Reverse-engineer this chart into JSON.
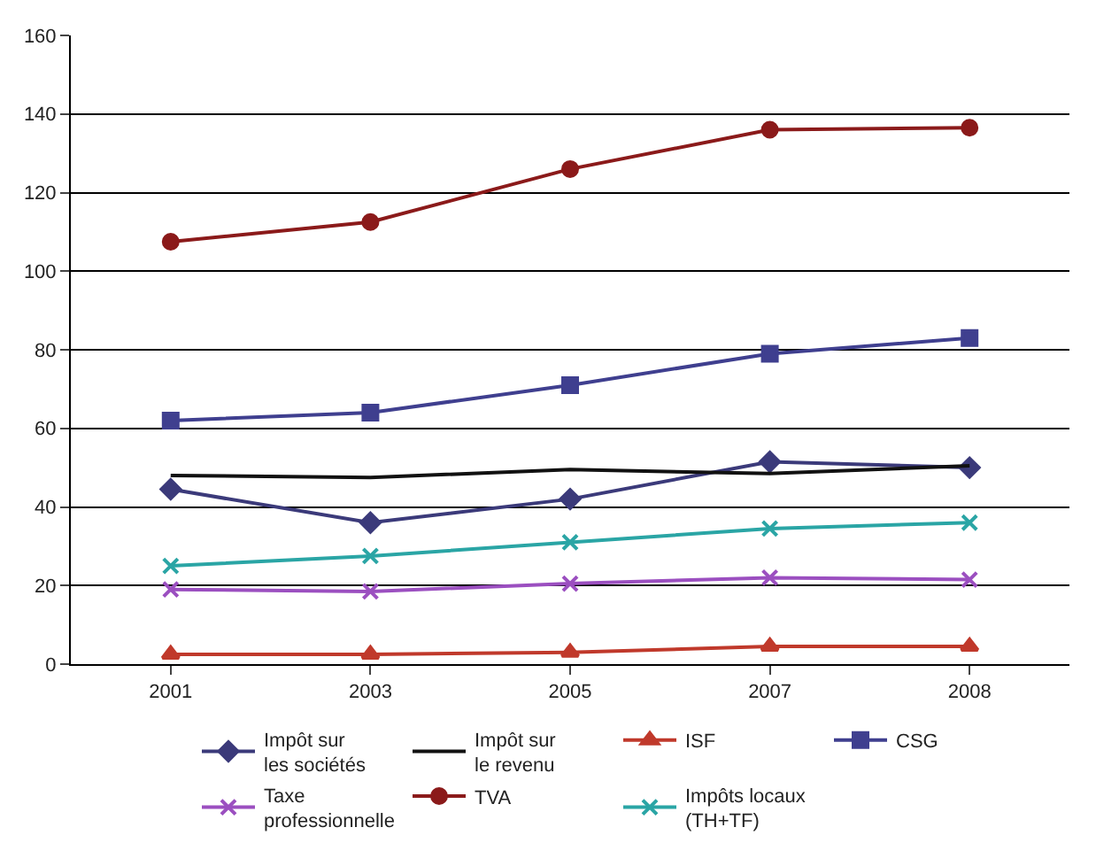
{
  "chart_data": {
    "type": "line",
    "categories": [
      "2001",
      "2003",
      "2005",
      "2007",
      "2008"
    ],
    "ylim": [
      0,
      160
    ],
    "yticks": [
      0,
      20,
      40,
      60,
      80,
      100,
      120,
      140,
      160
    ],
    "grid": "y",
    "legend": "bottom",
    "line_style": "solid",
    "series": [
      {
        "name": "Impôt sur\nles sociétés",
        "color": "#3b3a7a",
        "marker": "diamond",
        "values": [
          44.5,
          36,
          42,
          51.5,
          50
        ]
      },
      {
        "name": "Impôt sur\nle revenu",
        "color": "#111111",
        "marker": "none",
        "values": [
          48,
          47.5,
          49.5,
          48.5,
          50.5
        ]
      },
      {
        "name": "ISF",
        "color": "#c0392b",
        "marker": "triangle",
        "values": [
          2.5,
          2.5,
          3,
          4.5,
          4.5
        ]
      },
      {
        "name": "CSG",
        "color": "#3f3f8f",
        "marker": "square",
        "values": [
          62,
          64,
          71,
          79,
          83
        ]
      },
      {
        "name": "Taxe\nprofessionnelle",
        "color": "#9b4fc0",
        "marker": "cross",
        "values": [
          19,
          18.5,
          20.5,
          22,
          21.5
        ]
      },
      {
        "name": "TVA",
        "color": "#8b1a1a",
        "marker": "circle",
        "values": [
          107.5,
          112.5,
          126,
          136,
          136.5
        ]
      },
      {
        "name": "Impôts locaux\n(TH+TF)",
        "color": "#2aa5a5",
        "marker": "cross",
        "values": [
          25,
          27.5,
          31,
          34.5,
          36
        ]
      }
    ]
  }
}
